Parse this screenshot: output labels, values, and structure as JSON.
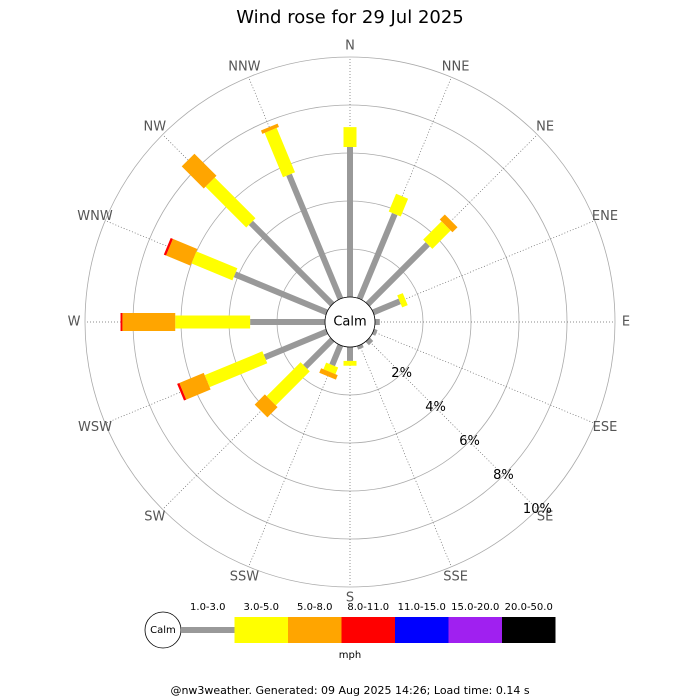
{
  "chart_data": {
    "type": "windrose",
    "title": "Wind rose for 29 Jul 2025",
    "categories": [
      "N",
      "NNE",
      "NE",
      "ENE",
      "E",
      "ESE",
      "SE",
      "SSE",
      "S",
      "SSW",
      "SW",
      "WSW",
      "W",
      "WNW",
      "NW",
      "NNW"
    ],
    "series": [
      {
        "name": "1.0-3.0",
        "color": "#999999",
        "values": [
          6.25,
          3.83,
          3.54,
          1.2,
          0.2,
          0.15,
          0.2,
          0.15,
          0.58,
          0.9,
          1.6,
          2.8,
          3.12,
          4.15,
          4.8,
          5.6
        ]
      },
      {
        "name": "3.0-5.0",
        "color": "#ffff00",
        "values": [
          0.83,
          0.8,
          1.08,
          0.25,
          0,
          0,
          0,
          0,
          0.2,
          0.3,
          2.0,
          2.6,
          3.12,
          1.85,
          2.4,
          2.0
        ]
      },
      {
        "name": "5.0-8.0",
        "color": "#ffa500",
        "values": [
          0,
          0,
          0.3,
          0,
          0,
          0,
          0,
          0,
          0,
          0.2,
          0.6,
          1.1,
          2.2,
          1.1,
          1.3,
          0.15
        ]
      },
      {
        "name": "8.0-11.0",
        "color": "#ff0000",
        "values": [
          0,
          0,
          0,
          0,
          0,
          0,
          0,
          0,
          0,
          0,
          0,
          0.1,
          0.08,
          0.1,
          0,
          0
        ]
      },
      {
        "name": "11.0-15.0",
        "color": "#0000ff",
        "values": [
          0,
          0,
          0,
          0,
          0,
          0,
          0,
          0,
          0,
          0,
          0,
          0,
          0,
          0,
          0,
          0
        ]
      },
      {
        "name": "15.0-20.0",
        "color": "#a020f0",
        "values": [
          0,
          0,
          0,
          0,
          0,
          0,
          0,
          0,
          0,
          0,
          0,
          0,
          0,
          0,
          0,
          0
        ]
      },
      {
        "name": "20.0-50.0",
        "color": "#000000",
        "values": [
          0,
          0,
          0,
          0,
          0,
          0,
          0,
          0,
          0,
          0,
          0,
          0,
          0,
          0,
          0,
          0
        ]
      }
    ],
    "rlim": [
      0,
      10
    ],
    "rticks": [
      {
        "value": 2,
        "label": "2%"
      },
      {
        "value": 4,
        "label": "4%"
      },
      {
        "value": 6,
        "label": "6%"
      },
      {
        "value": 8,
        "label": "8%"
      },
      {
        "value": 10,
        "label": "10%"
      }
    ],
    "calm_label": "Calm",
    "legend_unit": "mph",
    "footer": "@nw3weather. Generated: 09 Aug 2025 14:26; Load time: 0.14 s"
  }
}
